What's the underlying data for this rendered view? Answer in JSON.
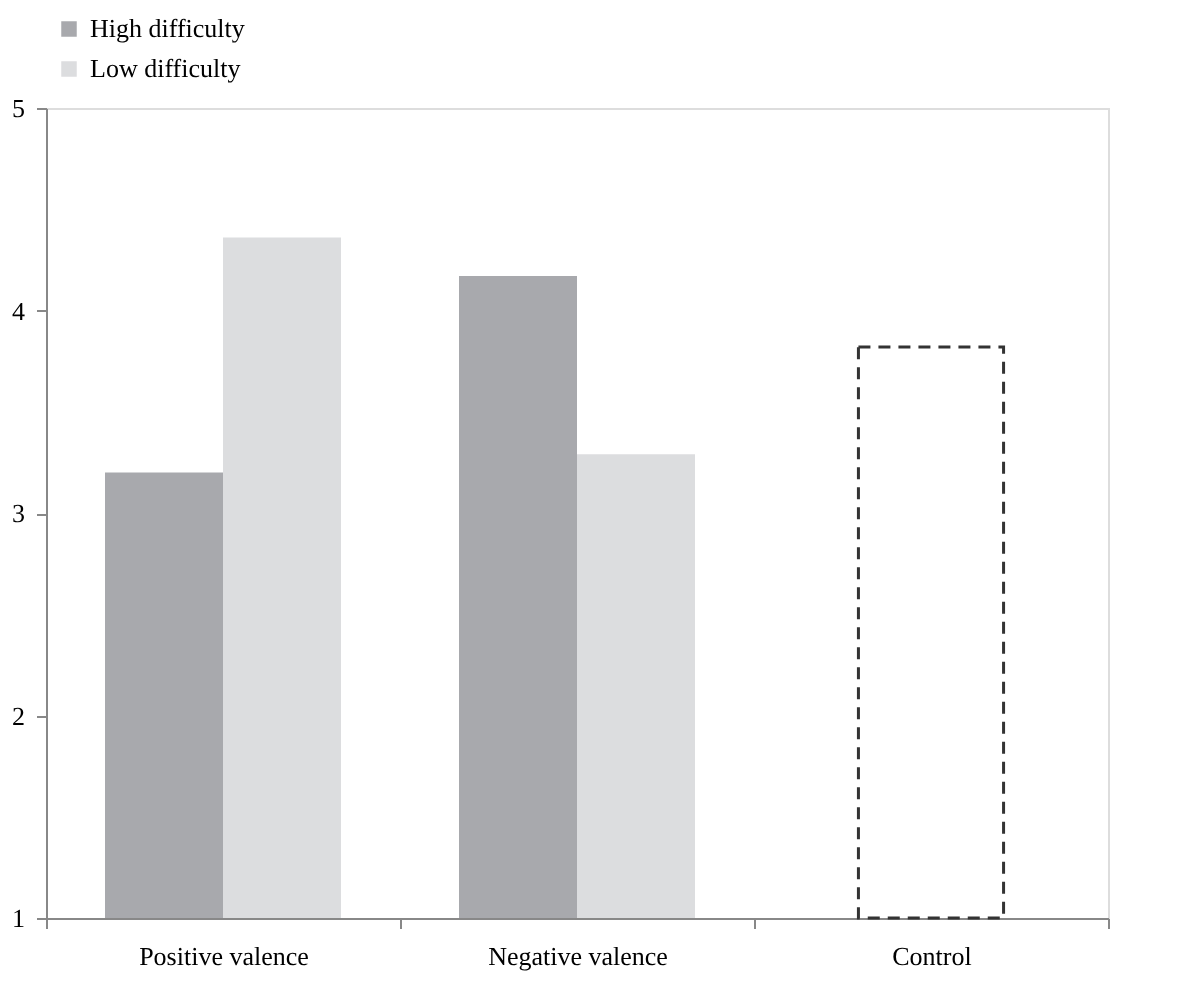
{
  "chart_data": {
    "type": "bar",
    "categories": [
      "Positive valence",
      "Negative valence",
      "Control"
    ],
    "series": [
      {
        "name": "High difficulty",
        "color": "#a8a9ad",
        "values": [
          3.2,
          4.17,
          null
        ]
      },
      {
        "name": "Low difficulty",
        "color": "#dcdddf",
        "values": [
          4.36,
          3.29,
          null
        ]
      },
      {
        "color": "#333333",
        "values": [
          null,
          null,
          3.82
        ],
        "line_style": "dashed"
      }
    ],
    "ylim": [
      1,
      5
    ],
    "yticks": [
      1,
      2,
      3,
      4,
      5
    ],
    "grid": false,
    "legend": "top left"
  }
}
